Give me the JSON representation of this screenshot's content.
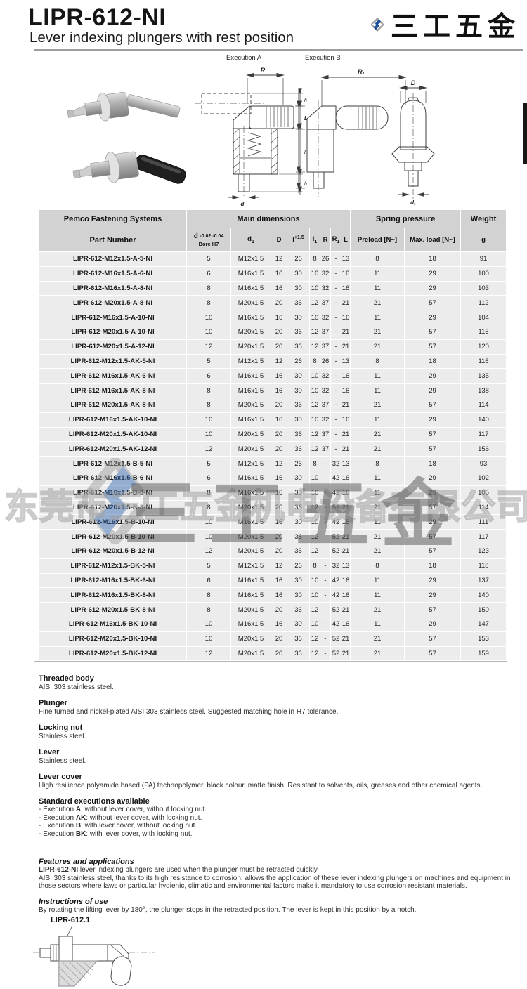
{
  "page": {
    "title": "LIPR-612-NI",
    "subtitle": "Lever indexing plungers with rest position"
  },
  "logo": {
    "text": "三工五金",
    "blue": "#1d4f9a",
    "gray": "#9a9a9a"
  },
  "drawings": {
    "execution_a": "Execution A",
    "execution_b": "Execution B",
    "a_labels": {
      "R": "R",
      "h_top": "h",
      "L": "L",
      "l": "l",
      "h_bottom": "h",
      "d": "d"
    },
    "b_labels": {
      "R1": "R₁",
      "D": "D",
      "d1": "d₁"
    }
  },
  "table": {
    "group_headers": {
      "brand": "Pemco Fastening Systems",
      "main": "Main dimensions",
      "spring": "Spring pressure",
      "weight": "Weight"
    },
    "headers": {
      "part_number": "Part Number",
      "d_base": "d",
      "d_tol": "-0.02 -0.04",
      "d_bore": "Bore H7",
      "d1": "d",
      "d1_sub": "1",
      "D": "D",
      "l_base": "l",
      "l_sup": "+1.5",
      "l1": "l",
      "l1_sub": "1",
      "R": "R",
      "R1": "R",
      "R1_sub": "1",
      "L": "L",
      "preload": "Preload [N~]",
      "maxload": "Max. load [N~]",
      "g": "g"
    },
    "rows": [
      [
        "LIPR-612-M12x1.5-A-5-NI",
        "5",
        "M12x1.5",
        "12",
        "26",
        "8",
        "26",
        "-",
        "13",
        "8",
        "18",
        "91"
      ],
      [
        "LIPR-612-M16x1.5-A-6-NI",
        "6",
        "M16x1.5",
        "16",
        "30",
        "10",
        "32",
        "-",
        "16",
        "11",
        "29",
        "100"
      ],
      [
        "LIPR-612-M16x1.5-A-8-NI",
        "8",
        "M16x1.5",
        "16",
        "30",
        "10",
        "32",
        "-",
        "16",
        "11",
        "29",
        "103"
      ],
      [
        "LIPR-612-M20x1.5-A-8-NI",
        "8",
        "M20x1.5",
        "20",
        "36",
        "12",
        "37",
        "-",
        "21",
        "21",
        "57",
        "112"
      ],
      [
        "LIPR-612-M16x1.5-A-10-NI",
        "10",
        "M16x1.5",
        "16",
        "30",
        "10",
        "32",
        "-",
        "16",
        "11",
        "29",
        "104"
      ],
      [
        "LIPR-612-M20x1.5-A-10-NI",
        "10",
        "M20x1.5",
        "20",
        "36",
        "12",
        "37",
        "-",
        "21",
        "21",
        "57",
        "115"
      ],
      [
        "LIPR-612-M20x1.5-A-12-NI",
        "12",
        "M20x1.5",
        "20",
        "36",
        "12",
        "37",
        "-",
        "21",
        "21",
        "57",
        "120"
      ],
      [
        "LIPR-612-M12x1.5-AK-5-NI",
        "5",
        "M12x1.5",
        "12",
        "26",
        "8",
        "26",
        "-",
        "13",
        "8",
        "18",
        "116"
      ],
      [
        "LIPR-612-M16x1.5-AK-6-NI",
        "6",
        "M16x1.5",
        "16",
        "30",
        "10",
        "32",
        "-",
        "16",
        "11",
        "29",
        "135"
      ],
      [
        "LIPR-612-M16x1.5-AK-8-NI",
        "8",
        "M16x1.5",
        "16",
        "30",
        "10",
        "32",
        "-",
        "16",
        "11",
        "29",
        "138"
      ],
      [
        "LIPR-612-M20x1.5-AK-8-NI",
        "8",
        "M20x1.5",
        "20",
        "36",
        "12",
        "37",
        "-",
        "21",
        "21",
        "57",
        "114"
      ],
      [
        "LIPR-612-M16x1.5-AK-10-NI",
        "10",
        "M16x1.5",
        "16",
        "30",
        "10",
        "32",
        "-",
        "16",
        "11",
        "29",
        "140"
      ],
      [
        "LIPR-612-M20x1.5-AK-10-NI",
        "10",
        "M20x1.5",
        "20",
        "36",
        "12",
        "37",
        "-",
        "21",
        "21",
        "57",
        "117"
      ],
      [
        "LIPR-612-M20x1.5-AK-12-NI",
        "12",
        "M20x1.5",
        "20",
        "36",
        "12",
        "37",
        "-",
        "21",
        "21",
        "57",
        "156"
      ],
      [
        "LIPR-612-M12x1.5-B-5-NI",
        "5",
        "M12x1.5",
        "12",
        "26",
        "8",
        "-",
        "32",
        "13",
        "8",
        "18",
        "93"
      ],
      [
        "LIPR-612-M16x1.5-B-6-NI",
        "6",
        "M16x1.5",
        "16",
        "30",
        "10",
        "-",
        "42",
        "16",
        "11",
        "29",
        "102"
      ],
      [
        "LIPR-612-M16x1.5-B-8-NI",
        "8",
        "M16x1.5",
        "16",
        "30",
        "10",
        "-",
        "42",
        "16",
        "11",
        "29",
        "105"
      ],
      [
        "LIPR-612-M20x1.5-B-8-NI",
        "8",
        "M20x1.5",
        "20",
        "36",
        "12",
        "-",
        "52",
        "21",
        "21",
        "57",
        "114"
      ],
      [
        "LIPR-612-M16x1.5-B-10-NI",
        "10",
        "M16x1.5",
        "16",
        "30",
        "10",
        "-",
        "42",
        "16",
        "11",
        "29",
        "111"
      ],
      [
        "LIPR-612-M20x1.5-B-10-NI",
        "10",
        "M20x1.5",
        "20",
        "36",
        "12",
        "-",
        "52",
        "21",
        "21",
        "57",
        "117"
      ],
      [
        "LIPR-612-M20x1.5-B-12-NI",
        "12",
        "M20x1.5",
        "20",
        "36",
        "12",
        "-",
        "52",
        "21",
        "21",
        "57",
        "123"
      ],
      [
        "LIPR-612-M12x1.5-BK-5-NI",
        "5",
        "M12x1.5",
        "12",
        "26",
        "8",
        "-",
        "32",
        "13",
        "8",
        "18",
        "118"
      ],
      [
        "LIPR-612-M16x1.5-BK-6-NI",
        "6",
        "M16x1.5",
        "16",
        "30",
        "10",
        "-",
        "42",
        "16",
        "11",
        "29",
        "137"
      ],
      [
        "LIPR-612-M16x1.5-BK-8-NI",
        "8",
        "M16x1.5",
        "16",
        "30",
        "10",
        "-",
        "42",
        "16",
        "11",
        "29",
        "140"
      ],
      [
        "LIPR-612-M20x1.5-BK-8-NI",
        "8",
        "M20x1.5",
        "20",
        "36",
        "12",
        "-",
        "52",
        "21",
        "21",
        "57",
        "150"
      ],
      [
        "LIPR-612-M16x1.5-BK-10-NI",
        "10",
        "M16x1.5",
        "16",
        "30",
        "10",
        "-",
        "42",
        "16",
        "11",
        "29",
        "147"
      ],
      [
        "LIPR-612-M20x1.5-BK-10-NI",
        "10",
        "M20x1.5",
        "20",
        "36",
        "12",
        "-",
        "52",
        "21",
        "21",
        "57",
        "153"
      ],
      [
        "LIPR-612-M20x1.5-BK-12-NI",
        "12",
        "M20x1.5",
        "20",
        "36",
        "12",
        "-",
        "52",
        "21",
        "21",
        "57",
        "159"
      ]
    ]
  },
  "watermark": {
    "company": "东莞市三工五金机电设备有限公司",
    "brand": "三工五金"
  },
  "sections": [
    {
      "heading": "Threaded body",
      "body": "AISI 303 stainless steel."
    },
    {
      "heading": "Plunger",
      "body": "Fine turned and nickel-plated AISI 303 stainless steel. Suggested matching hole in H7 tolerance."
    },
    {
      "heading": "Locking nut",
      "body": "Stainless steel."
    },
    {
      "heading": "Lever",
      "body": "Stainless steel."
    },
    {
      "heading": "Lever cover",
      "body": "High resilience polyamide based (PA) technopolymer, black colour, matte finish. Resistant to solvents, oils, greases and other chemical agents."
    }
  ],
  "executions": {
    "heading": "Standard executions available",
    "items": [
      {
        "pre": "- Execution ",
        "name": "A",
        "post": ": without lever cover, without locking nut."
      },
      {
        "pre": "- Execution ",
        "name": "AK",
        "post": ": without lever cover, with locking nut."
      },
      {
        "pre": "- Execution ",
        "name": "B",
        "post": ": with lever cover, without locking nut."
      },
      {
        "pre": "- Execution ",
        "name": "BK",
        "post": ": with lever cover, with locking nut."
      }
    ]
  },
  "features": {
    "heading": "Features and applications",
    "p1_bold": "LIPR-612-NI",
    "p1_rest": " lever indexing plungers are used when the plunger must be retracted quickly.",
    "p2": "AISI 303 stainless steel, thanks to its high resistance to corrosion, allows the application of these lever indexing plungers on machines and equipment in those sectors where laws or particular hygienic, climatic and environmental factors make it mandatory to use corrosion resistant materials."
  },
  "instructions": {
    "heading": "Instructions of use",
    "body": "By rotating the lifting lever by 180°, the plunger stops in the retracted position. The lever is kept in this position by a notch."
  },
  "figure_label": "LIPR-612.1"
}
